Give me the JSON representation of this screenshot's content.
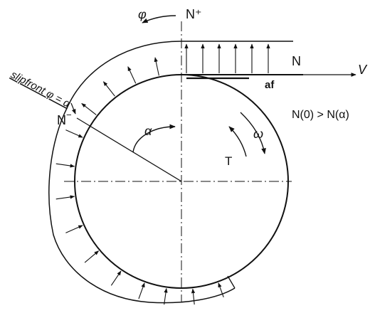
{
  "labels": {
    "phi_top": "φ",
    "n_plus": "N⁺",
    "n_right": "N",
    "velocity": "V",
    "af": "af",
    "n_minus": "N",
    "slipfront": "slipfront φ = α",
    "alpha": "α",
    "omega": "ω",
    "torque": "T",
    "relation": "N(0) > N(α)"
  },
  "colors": {
    "ink": "#111111",
    "background": "#ffffff"
  }
}
